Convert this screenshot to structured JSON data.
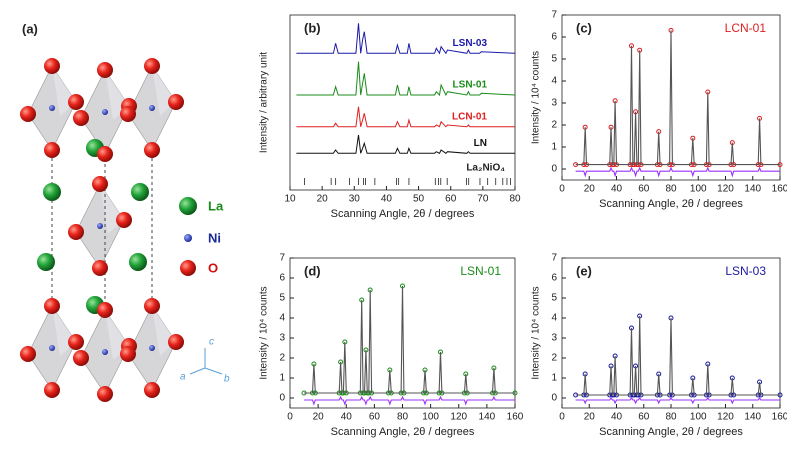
{
  "structure": {
    "label": "(a)",
    "legend": [
      "La",
      "Ni",
      "O"
    ],
    "axes": [
      "a",
      "b",
      "c"
    ]
  },
  "chart_data": [
    {
      "type": "line",
      "label": "(b)",
      "x_label": "Scanning Angle, 2θ / degrees",
      "y_label": "Intensity / arbitrary unit",
      "xlim": [
        10,
        80
      ],
      "xticks": [
        10,
        20,
        30,
        40,
        50,
        60,
        70,
        80
      ],
      "ylim": [
        0,
        1.05
      ],
      "x": [
        12,
        23.5,
        24.2,
        25,
        30.5,
        31.3,
        32,
        32.6,
        33.1,
        34,
        42.8,
        43.4,
        44.2,
        46.5,
        47,
        47.6,
        55,
        55.5,
        56.5,
        57,
        58.5,
        59,
        65,
        65.5,
        66,
        69,
        69.5,
        80
      ],
      "series": [
        {
          "name": "LSN-03",
          "color": "#1a1aa8",
          "values": [
            0.82,
            0.82,
            0.88,
            0.82,
            0.82,
            1.0,
            0.82,
            0.9,
            0.95,
            0.82,
            0.82,
            0.87,
            0.82,
            0.82,
            0.88,
            0.82,
            0.82,
            0.85,
            0.82,
            0.86,
            0.82,
            0.84,
            0.82,
            0.84,
            0.82,
            0.82,
            0.83,
            0.82
          ]
        },
        {
          "name": "LSN-01",
          "color": "#1a8c1a",
          "values": [
            0.57,
            0.57,
            0.62,
            0.57,
            0.57,
            0.77,
            0.57,
            0.64,
            0.7,
            0.57,
            0.57,
            0.63,
            0.57,
            0.57,
            0.62,
            0.57,
            0.57,
            0.59,
            0.57,
            0.63,
            0.57,
            0.59,
            0.57,
            0.59,
            0.57,
            0.57,
            0.58,
            0.57
          ]
        },
        {
          "name": "LCN-01",
          "color": "#e02020",
          "values": [
            0.38,
            0.38,
            0.4,
            0.38,
            0.38,
            0.5,
            0.38,
            0.42,
            0.46,
            0.38,
            0.38,
            0.41,
            0.38,
            0.38,
            0.42,
            0.38,
            0.38,
            0.39,
            0.38,
            0.41,
            0.38,
            0.39,
            0.38,
            0.39,
            0.38,
            0.38,
            0.38,
            0.38
          ]
        },
        {
          "name": "LN",
          "color": "#111111",
          "values": [
            0.22,
            0.22,
            0.24,
            0.22,
            0.22,
            0.33,
            0.22,
            0.25,
            0.28,
            0.22,
            0.22,
            0.25,
            0.22,
            0.22,
            0.25,
            0.22,
            0.22,
            0.23,
            0.22,
            0.24,
            0.22,
            0.23,
            0.22,
            0.23,
            0.22,
            0.22,
            0.22,
            0.22
          ]
        }
      ],
      "reflections": {
        "name": "La₂NiO₄",
        "x": [
          14.5,
          22.8,
          24.2,
          28.5,
          31.3,
          32.9,
          33.5,
          36.4,
          43.1,
          43.8,
          47.0,
          55.2,
          56.2,
          56.9,
          58.9,
          64.9,
          65.6,
          69.1,
          71.5,
          74.0,
          76.2,
          77.5,
          78.6
        ]
      }
    },
    {
      "type": "refinement",
      "label": "(c)",
      "title": "LCN-01",
      "x_label": "Scanning Angle, 2θ / degrees",
      "y_label": "Intensity / 10⁴ counts",
      "xlim": [
        0,
        160
      ],
      "xticks": [
        0,
        20,
        40,
        60,
        80,
        100,
        120,
        140,
        160
      ],
      "ylim": [
        -0.5,
        7
      ],
      "yticks": [
        0,
        1,
        2,
        3,
        4,
        5,
        6,
        7
      ],
      "x": [
        10,
        16,
        17,
        18,
        35,
        36,
        37,
        38,
        39,
        40,
        50,
        51,
        52,
        53,
        54,
        55,
        56,
        57,
        58,
        70,
        71,
        72,
        79,
        80,
        81,
        95,
        96,
        97,
        106,
        107,
        108,
        124,
        125,
        126,
        144,
        145,
        146,
        160
      ],
      "series": [
        {
          "mode": "markers",
          "color": "#e02020",
          "values": [
            0.2,
            0.2,
            1.9,
            0.2,
            0.2,
            1.9,
            0.2,
            0.2,
            3.1,
            0.2,
            0.2,
            5.6,
            0.2,
            0.2,
            2.6,
            0.2,
            0.2,
            5.4,
            0.2,
            0.2,
            1.7,
            0.2,
            0.2,
            6.3,
            0.2,
            0.2,
            1.4,
            0.2,
            0.2,
            3.5,
            0.2,
            0.2,
            1.2,
            0.2,
            0.2,
            2.3,
            0.2,
            0.2
          ]
        },
        {
          "mode": "line",
          "color": "#555555",
          "values": [
            0.2,
            0.2,
            1.9,
            0.2,
            0.2,
            1.9,
            0.2,
            0.2,
            3.1,
            0.2,
            0.2,
            5.6,
            0.2,
            0.2,
            2.6,
            0.2,
            0.2,
            5.4,
            0.2,
            0.2,
            1.7,
            0.2,
            0.2,
            6.3,
            0.2,
            0.2,
            1.4,
            0.2,
            0.2,
            3.5,
            0.2,
            0.2,
            1.2,
            0.2,
            0.2,
            2.3,
            0.2,
            0.2
          ]
        },
        {
          "mode": "line",
          "color": "#9b30ff",
          "values": [
            -0.1,
            -0.1,
            -0.3,
            -0.1,
            -0.1,
            0.05,
            -0.1,
            -0.1,
            -0.3,
            -0.1,
            -0.1,
            0.05,
            -0.1,
            -0.1,
            -0.3,
            -0.1,
            -0.1,
            0.05,
            -0.1,
            -0.1,
            -0.3,
            -0.1,
            -0.1,
            0.05,
            -0.1,
            -0.1,
            -0.3,
            -0.1,
            -0.1,
            0.05,
            -0.1,
            -0.1,
            -0.3,
            -0.1,
            -0.1,
            0.05,
            -0.1,
            -0.1
          ]
        }
      ]
    },
    {
      "type": "refinement",
      "label": "(d)",
      "title": "LSN-01",
      "x_label": "Scanning Angle, 2θ / degrees",
      "y_label": "Intensity / 10⁴ counts",
      "xlim": [
        0,
        160
      ],
      "xticks": [
        0,
        20,
        40,
        60,
        80,
        100,
        120,
        140,
        160
      ],
      "ylim": [
        -0.5,
        7
      ],
      "yticks": [
        0,
        1,
        2,
        3,
        4,
        5,
        6,
        7
      ],
      "x": [
        10,
        16,
        17,
        18,
        35,
        36,
        37,
        38,
        39,
        40,
        50,
        51,
        52,
        53,
        54,
        55,
        56,
        57,
        58,
        70,
        71,
        72,
        79,
        80,
        81,
        95,
        96,
        97,
        106,
        107,
        108,
        124,
        125,
        126,
        144,
        145,
        146,
        160
      ],
      "series": [
        {
          "mode": "markers",
          "color": "#1a8c1a",
          "values": [
            0.25,
            0.25,
            1.7,
            0.25,
            0.25,
            1.8,
            0.25,
            0.25,
            2.8,
            0.25,
            0.25,
            4.9,
            0.25,
            0.25,
            2.4,
            0.25,
            0.25,
            5.4,
            0.25,
            0.25,
            1.4,
            0.25,
            0.25,
            5.6,
            0.25,
            0.25,
            1.4,
            0.25,
            0.25,
            2.3,
            0.25,
            0.25,
            1.2,
            0.25,
            0.25,
            1.5,
            0.25,
            0.25
          ]
        },
        {
          "mode": "line",
          "color": "#555555",
          "values": [
            0.25,
            0.25,
            1.7,
            0.25,
            0.25,
            1.8,
            0.25,
            0.25,
            2.8,
            0.25,
            0.25,
            4.9,
            0.25,
            0.25,
            2.4,
            0.25,
            0.25,
            5.4,
            0.25,
            0.25,
            1.4,
            0.25,
            0.25,
            5.6,
            0.25,
            0.25,
            1.4,
            0.25,
            0.25,
            2.3,
            0.25,
            0.25,
            1.2,
            0.25,
            0.25,
            1.5,
            0.25,
            0.25
          ]
        },
        {
          "mode": "line",
          "color": "#9b30ff",
          "values": [
            -0.1,
            -0.1,
            -0.3,
            -0.1,
            -0.1,
            0.05,
            -0.1,
            -0.1,
            -0.3,
            -0.1,
            -0.1,
            0.05,
            -0.1,
            -0.1,
            -0.3,
            -0.1,
            -0.1,
            0.05,
            -0.1,
            -0.1,
            -0.3,
            -0.1,
            -0.1,
            0.05,
            -0.1,
            -0.1,
            -0.3,
            -0.1,
            -0.1,
            0.05,
            -0.1,
            -0.1,
            -0.3,
            -0.1,
            -0.1,
            0.05,
            -0.1,
            -0.1
          ]
        }
      ]
    },
    {
      "type": "refinement",
      "label": "(e)",
      "title": "LSN-03",
      "x_label": "Scanning Angle, 2θ / degrees",
      "y_label": "Intensity / 10⁴ counts",
      "xlim": [
        0,
        160
      ],
      "xticks": [
        0,
        20,
        40,
        60,
        80,
        100,
        120,
        140,
        160
      ],
      "ylim": [
        -0.5,
        7
      ],
      "yticks": [
        0,
        1,
        2,
        3,
        4,
        5,
        6,
        7
      ],
      "x": [
        10,
        16,
        17,
        18,
        35,
        36,
        37,
        38,
        39,
        40,
        50,
        51,
        52,
        53,
        54,
        55,
        56,
        57,
        58,
        70,
        71,
        72,
        79,
        80,
        81,
        95,
        96,
        97,
        106,
        107,
        108,
        124,
        125,
        126,
        144,
        145,
        146,
        160
      ],
      "series": [
        {
          "mode": "markers",
          "color": "#1a1aa0",
          "values": [
            0.15,
            0.15,
            1.2,
            0.15,
            0.15,
            1.6,
            0.15,
            0.15,
            2.1,
            0.15,
            0.15,
            3.5,
            0.15,
            0.15,
            1.6,
            0.15,
            0.15,
            4.1,
            0.15,
            0.15,
            1.2,
            0.15,
            0.15,
            4.0,
            0.15,
            0.15,
            1.0,
            0.15,
            0.15,
            1.7,
            0.15,
            0.15,
            1.0,
            0.15,
            0.15,
            0.8,
            0.15,
            0.15
          ]
        },
        {
          "mode": "line",
          "color": "#555555",
          "values": [
            0.15,
            0.15,
            1.2,
            0.15,
            0.15,
            1.6,
            0.15,
            0.15,
            2.1,
            0.15,
            0.15,
            3.5,
            0.15,
            0.15,
            1.6,
            0.15,
            0.15,
            4.1,
            0.15,
            0.15,
            1.2,
            0.15,
            0.15,
            4.0,
            0.15,
            0.15,
            1.0,
            0.15,
            0.15,
            1.7,
            0.15,
            0.15,
            1.0,
            0.15,
            0.15,
            0.8,
            0.15,
            0.15
          ]
        },
        {
          "mode": "line",
          "color": "#9b30ff",
          "values": [
            -0.1,
            -0.1,
            -0.25,
            -0.1,
            -0.1,
            0.0,
            -0.1,
            -0.1,
            -0.25,
            -0.1,
            -0.1,
            0.0,
            -0.1,
            -0.1,
            -0.25,
            -0.1,
            -0.1,
            0.0,
            -0.1,
            -0.1,
            -0.25,
            -0.1,
            -0.1,
            0.0,
            -0.1,
            -0.1,
            -0.25,
            -0.1,
            -0.1,
            0.0,
            -0.1,
            -0.1,
            -0.25,
            -0.1,
            -0.1,
            0.0,
            -0.1,
            -0.1
          ]
        }
      ]
    }
  ]
}
